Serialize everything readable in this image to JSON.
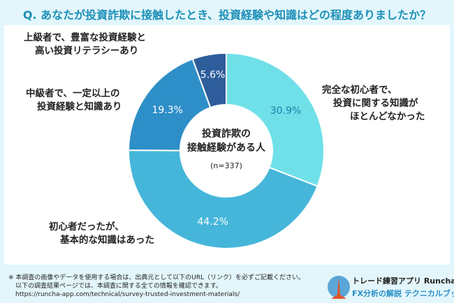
{
  "title": "Q. あなたが投資詐欺に接触したとき、投資経験や知識はどの程度ありましたか？",
  "chart_data": {
    "type": "pie",
    "donut": true,
    "center_title": [
      "投資詐欺の",
      "接触経験がある人"
    ],
    "center_note": "(n=337)",
    "slices": [
      {
        "label": [
          "完全な初心者で、",
          "投資に関する知識が",
          "ほとんどなかった"
        ],
        "value": 30.9,
        "value_label": "30.9%",
        "color": "#6fe0e8"
      },
      {
        "label": [
          "初心者だったが、",
          "基本的な知識はあった"
        ],
        "value": 44.2,
        "value_label": "44.2%",
        "color": "#45b6da"
      },
      {
        "label": [
          "中級者で、一定以上の",
          "投資経験と知識あり"
        ],
        "value": 19.3,
        "value_label": "19.3%",
        "color": "#2e8fc8"
      },
      {
        "label": [
          "上級者で、豊富な投資経験と",
          "高い投資リテラシーあり"
        ],
        "value": 5.6,
        "value_label": "5.6%",
        "color": "#2e5d9c"
      }
    ]
  },
  "footer": {
    "line1": "※ 本調査の画像やデータを使用する場合は、出典元として以下のURL（リンク）を必ずご記載ください。",
    "line2": "以下の調査結果ページでは、本調査に関する全ての情報を確認できます。",
    "url": "https://runcha-app.com/technical/survey-trusted-investment-materials/"
  },
  "brand": {
    "line1": "トレード練習アプリ Runcha",
    "line2": "FX分析の解説 テクニカルブック"
  }
}
